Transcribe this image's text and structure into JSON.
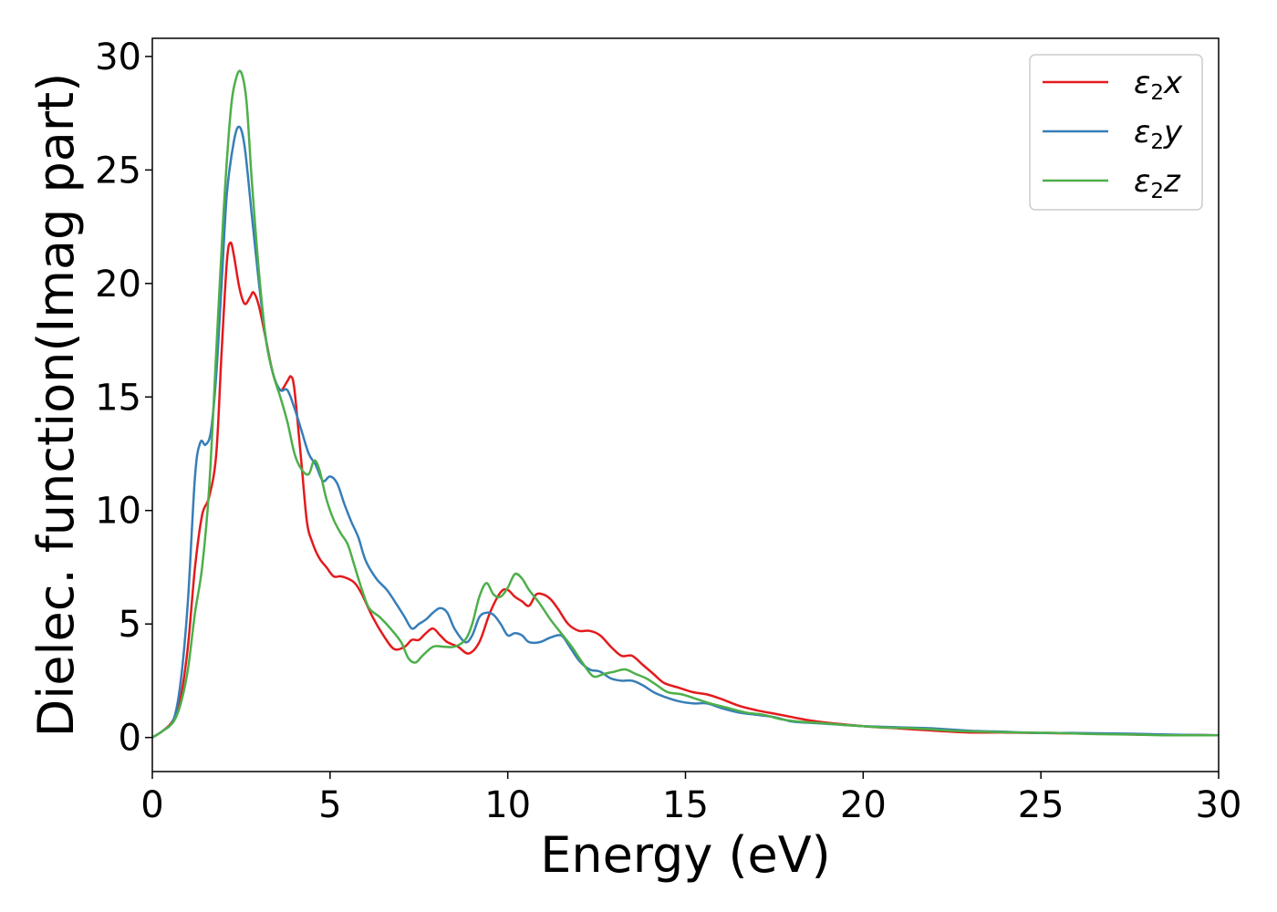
{
  "chart_data": {
    "type": "line",
    "title": "",
    "xlabel": "Energy (eV)",
    "ylabel": "Dielec. function(Imag part)",
    "xlim": [
      0,
      30
    ],
    "ylim": [
      -1.5,
      30.8
    ],
    "xticks": [
      0,
      5,
      10,
      15,
      20,
      25,
      30
    ],
    "yticks": [
      0,
      5,
      10,
      15,
      20,
      25,
      30
    ],
    "grid": false,
    "legend_position": "top-right",
    "series": [
      {
        "name": "ε₂x",
        "legend_base": "ε",
        "legend_sub": "2",
        "legend_var": "x",
        "color": "#e41a1c",
        "points": [
          [
            0,
            0
          ],
          [
            0.3,
            0.3
          ],
          [
            0.6,
            0.8
          ],
          [
            0.8,
            1.8
          ],
          [
            1.0,
            4.0
          ],
          [
            1.2,
            7.5
          ],
          [
            1.4,
            9.8
          ],
          [
            1.6,
            10.6
          ],
          [
            1.8,
            12.5
          ],
          [
            1.95,
            17.0
          ],
          [
            2.1,
            21.0
          ],
          [
            2.2,
            21.8
          ],
          [
            2.3,
            21.2
          ],
          [
            2.45,
            19.8
          ],
          [
            2.6,
            19.1
          ],
          [
            2.75,
            19.4
          ],
          [
            2.85,
            19.6
          ],
          [
            3.0,
            19.0
          ],
          [
            3.2,
            17.5
          ],
          [
            3.4,
            16.0
          ],
          [
            3.6,
            15.3
          ],
          [
            3.8,
            15.7
          ],
          [
            3.9,
            15.9
          ],
          [
            4.0,
            15.3
          ],
          [
            4.2,
            12.0
          ],
          [
            4.35,
            9.5
          ],
          [
            4.5,
            8.6
          ],
          [
            4.7,
            7.9
          ],
          [
            4.9,
            7.5
          ],
          [
            5.1,
            7.1
          ],
          [
            5.3,
            7.1
          ],
          [
            5.5,
            7.0
          ],
          [
            5.7,
            6.8
          ],
          [
            5.9,
            6.3
          ],
          [
            6.2,
            5.3
          ],
          [
            6.5,
            4.5
          ],
          [
            6.8,
            3.9
          ],
          [
            7.1,
            4.0
          ],
          [
            7.3,
            4.3
          ],
          [
            7.5,
            4.3
          ],
          [
            7.7,
            4.6
          ],
          [
            7.9,
            4.8
          ],
          [
            8.1,
            4.5
          ],
          [
            8.3,
            4.2
          ],
          [
            8.6,
            4.0
          ],
          [
            8.9,
            3.7
          ],
          [
            9.2,
            4.2
          ],
          [
            9.5,
            5.5
          ],
          [
            9.8,
            6.4
          ],
          [
            10.0,
            6.5
          ],
          [
            10.2,
            6.2
          ],
          [
            10.4,
            6.0
          ],
          [
            10.6,
            5.8
          ],
          [
            10.8,
            6.3
          ],
          [
            11.0,
            6.3
          ],
          [
            11.2,
            6.1
          ],
          [
            11.4,
            5.7
          ],
          [
            11.7,
            5.0
          ],
          [
            12.0,
            4.7
          ],
          [
            12.3,
            4.7
          ],
          [
            12.6,
            4.5
          ],
          [
            12.9,
            4.0
          ],
          [
            13.2,
            3.6
          ],
          [
            13.5,
            3.6
          ],
          [
            13.8,
            3.2
          ],
          [
            14.1,
            2.8
          ],
          [
            14.4,
            2.4
          ],
          [
            14.8,
            2.2
          ],
          [
            15.2,
            2.0
          ],
          [
            15.6,
            1.9
          ],
          [
            16.0,
            1.7
          ],
          [
            16.5,
            1.4
          ],
          [
            17.0,
            1.2
          ],
          [
            17.5,
            1.05
          ],
          [
            18.0,
            0.9
          ],
          [
            18.5,
            0.75
          ],
          [
            19.0,
            0.65
          ],
          [
            20.0,
            0.5
          ],
          [
            21.0,
            0.4
          ],
          [
            22.0,
            0.3
          ],
          [
            23.0,
            0.22
          ],
          [
            24.0,
            0.22
          ],
          [
            25.0,
            0.2
          ],
          [
            26.0,
            0.18
          ],
          [
            27.0,
            0.15
          ],
          [
            28.0,
            0.12
          ],
          [
            29.0,
            0.12
          ],
          [
            30.0,
            0.1
          ]
        ]
      },
      {
        "name": "ε₂y",
        "legend_base": "ε",
        "legend_sub": "2",
        "legend_var": "y",
        "color": "#377eb8",
        "points": [
          [
            0,
            0
          ],
          [
            0.3,
            0.3
          ],
          [
            0.6,
            0.8
          ],
          [
            0.8,
            2.5
          ],
          [
            1.0,
            6.0
          ],
          [
            1.2,
            11.5
          ],
          [
            1.35,
            13.0
          ],
          [
            1.5,
            12.9
          ],
          [
            1.65,
            13.5
          ],
          [
            1.8,
            16.0
          ],
          [
            1.95,
            20.0
          ],
          [
            2.1,
            24.0
          ],
          [
            2.3,
            26.3
          ],
          [
            2.45,
            26.9
          ],
          [
            2.6,
            26.0
          ],
          [
            2.8,
            23.0
          ],
          [
            3.0,
            20.0
          ],
          [
            3.2,
            17.5
          ],
          [
            3.4,
            16.0
          ],
          [
            3.6,
            15.3
          ],
          [
            3.8,
            15.3
          ],
          [
            4.0,
            14.5
          ],
          [
            4.2,
            13.5
          ],
          [
            4.4,
            12.5
          ],
          [
            4.6,
            12.0
          ],
          [
            4.8,
            11.3
          ],
          [
            5.0,
            11.5
          ],
          [
            5.2,
            11.2
          ],
          [
            5.4,
            10.3
          ],
          [
            5.6,
            9.5
          ],
          [
            5.8,
            8.8
          ],
          [
            6.0,
            7.8
          ],
          [
            6.3,
            7.0
          ],
          [
            6.6,
            6.5
          ],
          [
            6.9,
            5.8
          ],
          [
            7.1,
            5.3
          ],
          [
            7.3,
            4.8
          ],
          [
            7.5,
            5.0
          ],
          [
            7.7,
            5.2
          ],
          [
            7.9,
            5.5
          ],
          [
            8.1,
            5.7
          ],
          [
            8.3,
            5.5
          ],
          [
            8.5,
            4.8
          ],
          [
            8.8,
            4.2
          ],
          [
            9.0,
            4.5
          ],
          [
            9.2,
            5.3
          ],
          [
            9.4,
            5.5
          ],
          [
            9.6,
            5.4
          ],
          [
            9.8,
            5.0
          ],
          [
            10.0,
            4.5
          ],
          [
            10.2,
            4.6
          ],
          [
            10.4,
            4.5
          ],
          [
            10.6,
            4.2
          ],
          [
            10.9,
            4.2
          ],
          [
            11.2,
            4.4
          ],
          [
            11.5,
            4.5
          ],
          [
            11.7,
            4.1
          ],
          [
            12.0,
            3.4
          ],
          [
            12.3,
            3.0
          ],
          [
            12.6,
            2.9
          ],
          [
            12.9,
            2.6
          ],
          [
            13.2,
            2.5
          ],
          [
            13.5,
            2.5
          ],
          [
            13.8,
            2.3
          ],
          [
            14.1,
            2.0
          ],
          [
            14.4,
            1.8
          ],
          [
            14.8,
            1.6
          ],
          [
            15.2,
            1.5
          ],
          [
            15.6,
            1.5
          ],
          [
            16.0,
            1.3
          ],
          [
            16.5,
            1.1
          ],
          [
            17.0,
            1.0
          ],
          [
            17.5,
            0.9
          ],
          [
            18.0,
            0.7
          ],
          [
            18.5,
            0.65
          ],
          [
            19.0,
            0.6
          ],
          [
            20.0,
            0.5
          ],
          [
            21.0,
            0.45
          ],
          [
            22.0,
            0.4
          ],
          [
            23.0,
            0.3
          ],
          [
            24.0,
            0.25
          ],
          [
            25.0,
            0.2
          ],
          [
            26.0,
            0.2
          ],
          [
            27.0,
            0.18
          ],
          [
            28.0,
            0.15
          ],
          [
            29.0,
            0.12
          ],
          [
            30.0,
            0.1
          ]
        ]
      },
      {
        "name": "ε₂z",
        "legend_base": "ε",
        "legend_sub": "2",
        "legend_var": "z",
        "color": "#4daf4a",
        "points": [
          [
            0,
            0
          ],
          [
            0.3,
            0.3
          ],
          [
            0.6,
            0.7
          ],
          [
            0.8,
            1.5
          ],
          [
            1.0,
            3.0
          ],
          [
            1.2,
            5.5
          ],
          [
            1.4,
            7.5
          ],
          [
            1.6,
            11.0
          ],
          [
            1.8,
            17.0
          ],
          [
            2.0,
            23.0
          ],
          [
            2.2,
            27.5
          ],
          [
            2.35,
            29.0
          ],
          [
            2.5,
            29.3
          ],
          [
            2.65,
            28.0
          ],
          [
            2.8,
            24.5
          ],
          [
            3.0,
            20.5
          ],
          [
            3.2,
            17.5
          ],
          [
            3.4,
            16.0
          ],
          [
            3.6,
            15.0
          ],
          [
            3.8,
            13.9
          ],
          [
            4.0,
            12.5
          ],
          [
            4.2,
            11.8
          ],
          [
            4.4,
            11.6
          ],
          [
            4.55,
            12.2
          ],
          [
            4.7,
            11.8
          ],
          [
            4.9,
            10.5
          ],
          [
            5.1,
            9.6
          ],
          [
            5.3,
            9.0
          ],
          [
            5.5,
            8.5
          ],
          [
            5.7,
            7.5
          ],
          [
            5.9,
            6.5
          ],
          [
            6.1,
            5.7
          ],
          [
            6.4,
            5.3
          ],
          [
            6.7,
            4.8
          ],
          [
            7.0,
            4.2
          ],
          [
            7.2,
            3.5
          ],
          [
            7.4,
            3.3
          ],
          [
            7.6,
            3.6
          ],
          [
            7.9,
            4.0
          ],
          [
            8.2,
            4.0
          ],
          [
            8.5,
            4.0
          ],
          [
            8.8,
            4.3
          ],
          [
            9.0,
            5.0
          ],
          [
            9.2,
            6.2
          ],
          [
            9.4,
            6.8
          ],
          [
            9.6,
            6.3
          ],
          [
            9.8,
            6.2
          ],
          [
            10.0,
            6.6
          ],
          [
            10.2,
            7.2
          ],
          [
            10.4,
            7.0
          ],
          [
            10.6,
            6.5
          ],
          [
            10.9,
            5.9
          ],
          [
            11.2,
            5.2
          ],
          [
            11.5,
            4.6
          ],
          [
            11.8,
            4.0
          ],
          [
            12.1,
            3.3
          ],
          [
            12.4,
            2.7
          ],
          [
            12.7,
            2.8
          ],
          [
            13.0,
            2.9
          ],
          [
            13.3,
            3.0
          ],
          [
            13.6,
            2.8
          ],
          [
            13.9,
            2.6
          ],
          [
            14.2,
            2.3
          ],
          [
            14.5,
            2.0
          ],
          [
            14.9,
            1.9
          ],
          [
            15.3,
            1.7
          ],
          [
            15.7,
            1.5
          ],
          [
            16.2,
            1.3
          ],
          [
            16.7,
            1.1
          ],
          [
            17.2,
            1.0
          ],
          [
            17.7,
            0.8
          ],
          [
            18.2,
            0.7
          ],
          [
            18.7,
            0.65
          ],
          [
            19.5,
            0.55
          ],
          [
            20.5,
            0.45
          ],
          [
            21.5,
            0.4
          ],
          [
            22.5,
            0.3
          ],
          [
            23.5,
            0.25
          ],
          [
            24.5,
            0.22
          ],
          [
            25.5,
            0.2
          ],
          [
            26.5,
            0.15
          ],
          [
            27.5,
            0.13
          ],
          [
            28.5,
            0.1
          ],
          [
            30.0,
            0.1
          ]
        ]
      }
    ]
  }
}
